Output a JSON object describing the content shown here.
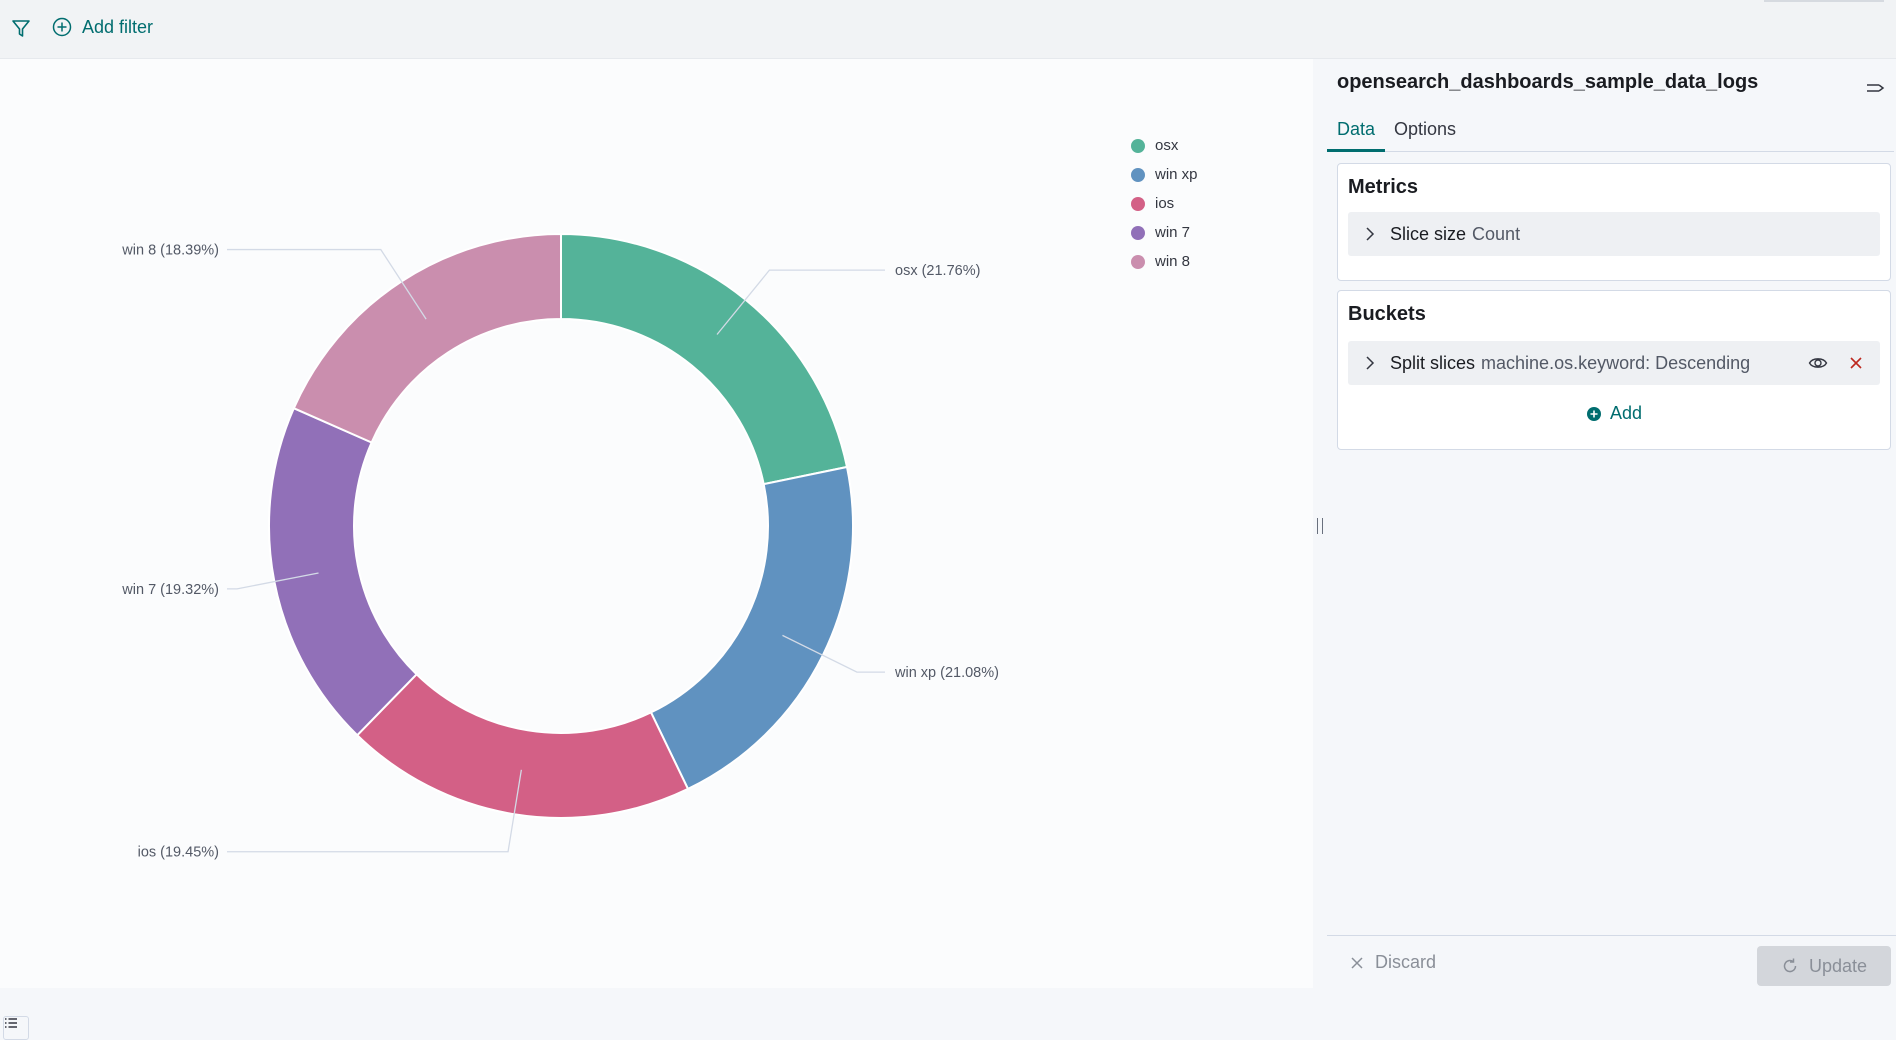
{
  "topbar": {
    "add_filter_label": "Add filter"
  },
  "sidebar": {
    "index_pattern": "opensearch_dashboards_sample_data_logs",
    "tabs": [
      {
        "label": "Data"
      },
      {
        "label": "Options"
      }
    ],
    "metrics": {
      "title": "Metrics",
      "row_label": "Slice size",
      "row_value": "Count"
    },
    "buckets": {
      "title": "Buckets",
      "row_label": "Split slices",
      "row_value": "machine.os.keyword: Descending",
      "add_label": "Add"
    },
    "footer": {
      "discard_label": "Discard",
      "update_label": "Update"
    }
  },
  "chart_data": {
    "type": "pie",
    "donut": true,
    "legend_placement": "top-right",
    "categories": [
      "osx",
      "win xp",
      "ios",
      "win 7",
      "win 8"
    ],
    "values": [
      21.76,
      21.08,
      19.45,
      19.32,
      18.39
    ],
    "labels": [
      "osx (21.76%)",
      "win xp (21.08%)",
      "ios (19.45%)",
      "win 7 (19.32%)",
      "win 8 (18.39%)"
    ],
    "colors": [
      "#54b399",
      "#6092c0",
      "#d36086",
      "#9170b8",
      "#ca8eae"
    ]
  }
}
